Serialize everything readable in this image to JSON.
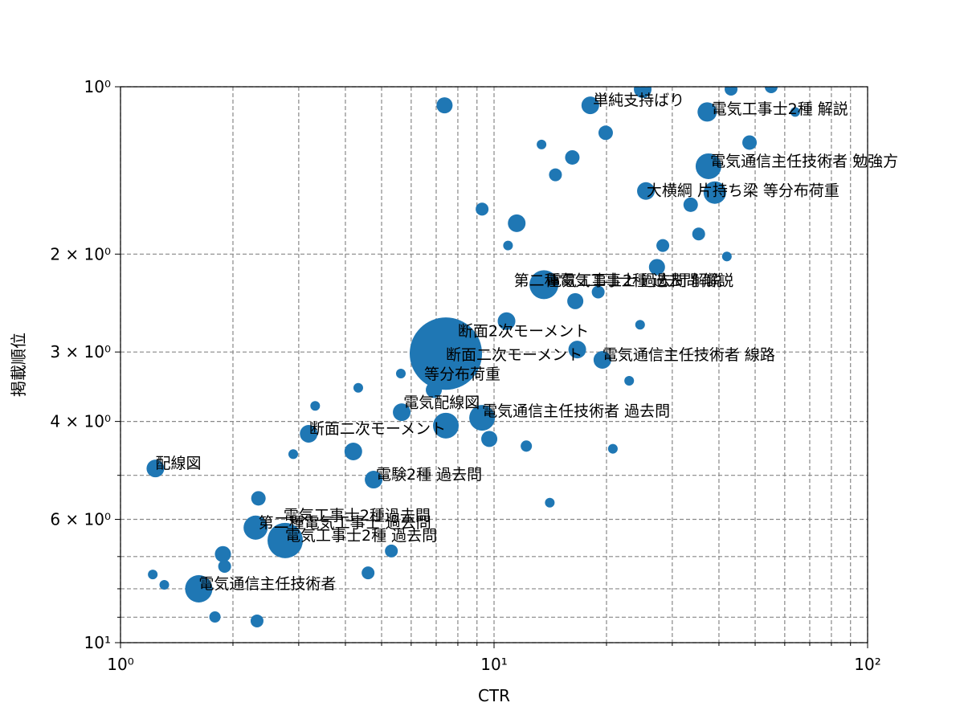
{
  "chart_data": {
    "type": "scatter",
    "x_label": "CTR",
    "y_label": "掲載順位",
    "xscale": "log",
    "yscale": "log",
    "yinverted": true,
    "grid": true,
    "color": "#1f77b4",
    "xlim": [
      1,
      100
    ],
    "ylim": [
      1,
      10
    ],
    "xticks": [
      {
        "value": 1,
        "label": "10⁰"
      },
      {
        "value": 10,
        "label": "10¹"
      },
      {
        "value": 100,
        "label": "10²"
      }
    ],
    "yticks": [
      {
        "value": 1,
        "label": "10⁰"
      },
      {
        "value": 2,
        "label": "2 × 10⁰"
      },
      {
        "value": 3,
        "label": "3 × 10⁰"
      },
      {
        "value": 4,
        "label": "4 × 10⁰"
      },
      {
        "value": 6,
        "label": "6 × 10⁰"
      },
      {
        "value": 10,
        "label": "10¹"
      }
    ],
    "xminorticks": [
      2,
      3,
      4,
      5,
      6,
      7,
      8,
      9,
      20,
      30,
      40,
      50,
      60,
      70,
      80,
      90
    ],
    "yminorticks": [
      5,
      7,
      8,
      9
    ],
    "x": [
      1.24,
      1.62,
      2.76,
      2.3,
      7.43,
      7.37,
      13.6,
      37.5,
      39.0,
      25.5,
      3.19,
      7.43,
      9.29,
      5.66,
      9.71,
      10.8,
      11.5,
      16.7,
      19.5,
      18.1,
      25.0,
      37.2,
      48.3,
      4.2,
      4.76,
      1.88,
      2.34,
      1.9,
      2.32,
      1.79,
      1.22,
      1.31,
      5.31,
      4.6,
      12.2,
      20.8,
      14.1,
      9.29,
      16.5,
      19.0,
      27.3,
      28.3,
      35.3,
      33.6,
      19.9,
      16.2,
      14.6,
      13.4,
      42.0,
      64.0,
      43.1,
      55.2,
      5.63,
      4.33,
      3.32,
      2.9,
      6.9,
      23.0,
      24.6,
      10.9
    ],
    "values": [
      4.86,
      8.0,
      6.55,
      6.21,
      3.02,
      1.08,
      2.27,
      1.39,
      1.55,
      1.54,
      4.21,
      4.07,
      3.94,
      3.85,
      4.3,
      2.64,
      1.76,
      2.97,
      3.1,
      1.08,
      1.01,
      1.11,
      1.26,
      4.53,
      5.09,
      6.93,
      5.5,
      7.29,
      9.14,
      8.99,
      7.54,
      7.87,
      6.84,
      7.49,
      4.43,
      4.48,
      5.6,
      1.66,
      2.43,
      2.34,
      2.11,
      1.93,
      1.84,
      1.63,
      1.21,
      1.34,
      1.44,
      1.27,
      2.02,
      1.11,
      1.01,
      1.0,
      3.28,
      3.48,
      3.75,
      4.58,
      3.51,
      3.38,
      2.68,
      1.93
    ],
    "sizes": [
      251,
      600,
      1005,
      467,
      4204,
      208,
      673,
      531,
      407,
      251,
      251,
      531,
      531,
      251,
      208,
      251,
      251,
      251,
      251,
      251,
      251,
      299,
      168,
      251,
      251,
      208,
      168,
      133,
      133,
      102,
      75,
      75,
      133,
      133,
      102,
      75,
      75,
      133,
      208,
      133,
      208,
      133,
      133,
      168,
      168,
      168,
      133,
      75,
      75,
      75,
      133,
      133,
      75,
      75,
      75,
      75,
      208,
      75,
      75,
      75
    ],
    "annotations": [
      {
        "text": "配線図",
        "x": 1.24,
        "y": 4.86
      },
      {
        "text": "電気通信主任技術者",
        "x": 1.62,
        "y": 8.0
      },
      {
        "text": "電気工事士2種 過去問",
        "x": 2.76,
        "y": 6.55
      },
      {
        "text": "第二種電気工事士 過去問",
        "x": 2.34,
        "y": 6.21
      },
      {
        "text": "電気工事士2種過去問",
        "x": 2.73,
        "y": 6.03
      },
      {
        "text": "電験2種 過去問",
        "x": 4.83,
        "y": 5.09
      },
      {
        "text": "断面二次モーメント",
        "x": 3.2,
        "y": 4.21
      },
      {
        "text": "電気配線図",
        "x": 5.72,
        "y": 3.78
      },
      {
        "text": "等分布荷重",
        "x": 6.5,
        "y": 3.36
      },
      {
        "text": "断面二次モーメント",
        "x": 7.43,
        "y": 3.1
      },
      {
        "text": "断面2次モーメント",
        "x": 8.0,
        "y": 2.81
      },
      {
        "text": "電気通信主任技術者 線路",
        "x": 19.5,
        "y": 3.1
      },
      {
        "text": "電気通信主任技術者 過去問",
        "x": 9.29,
        "y": 3.91
      },
      {
        "text": "第二種電気工事士 過去問 解説",
        "x": 11.3,
        "y": 2.28
      },
      {
        "text": "電気工事士2種 過去問 解説",
        "x": 13.8,
        "y": 2.28
      },
      {
        "text": "大横綱 片持ち梁 等分布荷重",
        "x": 25.6,
        "y": 1.57
      },
      {
        "text": "電気通信主任技術者 勉強方",
        "x": 37.9,
        "y": 1.39
      },
      {
        "text": "単純支持ばり",
        "x": 18.4,
        "y": 1.08
      },
      {
        "text": "電気工事士2種 解説",
        "x": 38.2,
        "y": 1.12
      }
    ]
  }
}
